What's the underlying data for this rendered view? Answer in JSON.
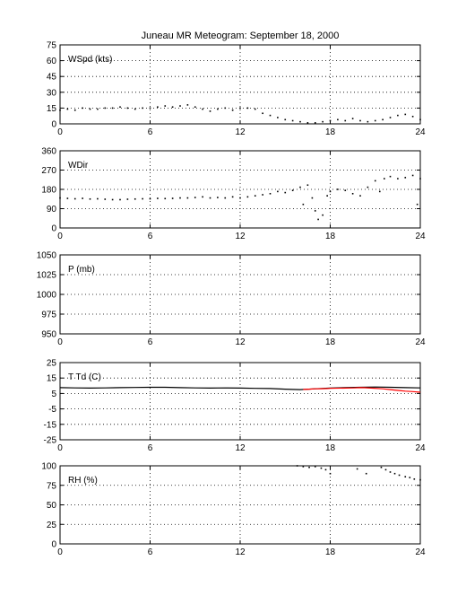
{
  "title": "Juneau MR Meteogram: September 18, 2000",
  "chart_data": [
    {
      "type": "scatter",
      "label": "WSpd (kts)",
      "xlim": [
        0,
        24
      ],
      "ylim": [
        0,
        75
      ],
      "xticks": [
        0,
        6,
        12,
        18,
        24
      ],
      "yticks": [
        0,
        15,
        30,
        45,
        60,
        75
      ],
      "grid": true,
      "series": [
        {
          "color": "#000000",
          "points": [
            [
              0,
              13
            ],
            [
              0.5,
              14
            ],
            [
              1,
              13
            ],
            [
              1.5,
              15
            ],
            [
              2,
              14
            ],
            [
              2.5,
              14
            ],
            [
              3,
              15
            ],
            [
              3.5,
              15
            ],
            [
              4,
              16
            ],
            [
              4.5,
              15
            ],
            [
              5,
              14
            ],
            [
              5.5,
              15
            ],
            [
              6,
              15
            ],
            [
              6.5,
              16
            ],
            [
              7,
              17
            ],
            [
              7.5,
              16
            ],
            [
              8,
              17
            ],
            [
              8.5,
              18
            ],
            [
              9,
              16
            ],
            [
              9.5,
              14
            ],
            [
              10,
              12
            ],
            [
              10.5,
              14
            ],
            [
              11,
              15
            ],
            [
              11.5,
              13
            ],
            [
              12,
              15
            ],
            [
              12.5,
              15
            ],
            [
              13,
              14
            ],
            [
              13.5,
              10
            ],
            [
              14,
              8
            ],
            [
              14.5,
              6
            ],
            [
              15,
              4
            ],
            [
              15.5,
              3
            ],
            [
              16,
              2
            ],
            [
              16.5,
              1
            ],
            [
              17,
              1
            ],
            [
              17.5,
              2
            ],
            [
              18,
              3
            ],
            [
              18.5,
              4
            ],
            [
              19,
              3
            ],
            [
              19.5,
              5
            ],
            [
              20,
              3
            ],
            [
              20.5,
              2
            ],
            [
              21,
              3
            ],
            [
              21.5,
              4
            ],
            [
              22,
              6
            ],
            [
              22.5,
              8
            ],
            [
              23,
              9
            ],
            [
              23.5,
              7
            ],
            [
              24,
              4
            ]
          ]
        }
      ]
    },
    {
      "type": "scatter",
      "label": "WDir",
      "xlim": [
        0,
        24
      ],
      "ylim": [
        0,
        360
      ],
      "xticks": [
        0,
        6,
        12,
        18,
        24
      ],
      "yticks": [
        0,
        90,
        180,
        270,
        360
      ],
      "grid": true,
      "series": [
        {
          "color": "#000000",
          "points": [
            [
              0,
              140
            ],
            [
              0.5,
              138
            ],
            [
              1,
              136
            ],
            [
              1.5,
              138
            ],
            [
              2,
              135
            ],
            [
              2.5,
              136
            ],
            [
              3,
              134
            ],
            [
              3.5,
              132
            ],
            [
              4,
              132
            ],
            [
              4.5,
              134
            ],
            [
              5,
              135
            ],
            [
              5.5,
              136
            ],
            [
              6,
              136
            ],
            [
              6.5,
              138
            ],
            [
              7,
              137
            ],
            [
              7.5,
              138
            ],
            [
              8,
              140
            ],
            [
              8.5,
              140
            ],
            [
              9,
              142
            ],
            [
              9.5,
              145
            ],
            [
              10,
              140
            ],
            [
              10.5,
              142
            ],
            [
              11,
              140
            ],
            [
              11.5,
              145
            ],
            [
              12,
              140
            ],
            [
              12.5,
              145
            ],
            [
              13,
              150
            ],
            [
              13.5,
              155
            ],
            [
              14,
              160
            ],
            [
              14.5,
              170
            ],
            [
              15,
              165
            ],
            [
              15.5,
              175
            ],
            [
              16,
              190
            ],
            [
              16.2,
              110
            ],
            [
              16.5,
              200
            ],
            [
              16.8,
              140
            ],
            [
              17,
              80
            ],
            [
              17.2,
              40
            ],
            [
              17.5,
              60
            ],
            [
              17.8,
              150
            ],
            [
              18,
              170
            ],
            [
              18.5,
              180
            ],
            [
              19,
              175
            ],
            [
              19.5,
              160
            ],
            [
              20,
              150
            ],
            [
              20.5,
              190
            ],
            [
              21,
              220
            ],
            [
              21.3,
              170
            ],
            [
              21.6,
              230
            ],
            [
              22,
              240
            ],
            [
              22.5,
              230
            ],
            [
              23,
              235
            ],
            [
              23.5,
              245
            ],
            [
              23.8,
              110
            ],
            [
              24,
              230
            ]
          ]
        }
      ]
    },
    {
      "type": "scatter",
      "label": "P (mb)",
      "xlim": [
        0,
        24
      ],
      "ylim": [
        950,
        1050
      ],
      "xticks": [
        0,
        6,
        12,
        18,
        24
      ],
      "yticks": [
        950,
        975,
        1000,
        1025,
        1050
      ],
      "grid": true,
      "series": []
    },
    {
      "type": "line",
      "label": "T Td (C)",
      "xlim": [
        0,
        24
      ],
      "ylim": [
        -25,
        25
      ],
      "xticks": [
        0,
        6,
        12,
        18,
        24
      ],
      "yticks": [
        -25,
        -15,
        -5,
        5,
        15,
        25
      ],
      "grid": true,
      "series": [
        {
          "color": "#000000",
          "points": [
            [
              0,
              8.8
            ],
            [
              1,
              8.6
            ],
            [
              2,
              8.5
            ],
            [
              3,
              8.6
            ],
            [
              4,
              8.8
            ],
            [
              5,
              8.9
            ],
            [
              6,
              9.0
            ],
            [
              7,
              9.0
            ],
            [
              8,
              8.8
            ],
            [
              9,
              8.6
            ],
            [
              10,
              8.5
            ],
            [
              11,
              8.6
            ],
            [
              12,
              8.5
            ],
            [
              13,
              8.3
            ],
            [
              14,
              8.2
            ],
            [
              15,
              7.8
            ],
            [
              16,
              7.5
            ],
            [
              17,
              8.0
            ],
            [
              18,
              8.5
            ],
            [
              19,
              8.8
            ],
            [
              20,
              9.0
            ],
            [
              21,
              9.2
            ],
            [
              22,
              9.0
            ],
            [
              23,
              8.8
            ],
            [
              24,
              8.6
            ]
          ]
        },
        {
          "color": "#ff0000",
          "points": [
            [
              16.2,
              7.6
            ],
            [
              16.6,
              7.8
            ],
            [
              17,
              8.0
            ],
            [
              17.4,
              8.1
            ],
            [
              17.8,
              8.2
            ],
            [
              18,
              8.3
            ],
            [
              19.6,
              8.6
            ],
            [
              20,
              8.8
            ],
            [
              20.3,
              8.7
            ],
            [
              21.5,
              8.0
            ],
            [
              22,
              7.5
            ],
            [
              22.5,
              7.0
            ],
            [
              23,
              6.5
            ],
            [
              23.5,
              6.2
            ],
            [
              24,
              5.8
            ]
          ]
        }
      ]
    },
    {
      "type": "scatter",
      "label": "RH (%)",
      "xlim": [
        0,
        24
      ],
      "ylim": [
        0,
        100
      ],
      "xticks": [
        0,
        6,
        12,
        18,
        24
      ],
      "yticks": [
        0,
        25,
        50,
        75,
        100
      ],
      "grid": true,
      "series": [
        {
          "color": "#000000",
          "points": [
            [
              15.8,
              100
            ],
            [
              16.2,
              99
            ],
            [
              16.6,
              98
            ],
            [
              17,
              99
            ],
            [
              17.4,
              97
            ],
            [
              17.7,
              95
            ],
            [
              18,
              90
            ],
            [
              19.8,
              96
            ],
            [
              20.4,
              90
            ],
            [
              21.4,
              98
            ],
            [
              21.7,
              95
            ],
            [
              22,
              92
            ],
            [
              22.3,
              90
            ],
            [
              22.6,
              88
            ],
            [
              23,
              86
            ],
            [
              23.3,
              85
            ],
            [
              23.6,
              83
            ],
            [
              24,
              82
            ]
          ]
        }
      ]
    }
  ]
}
